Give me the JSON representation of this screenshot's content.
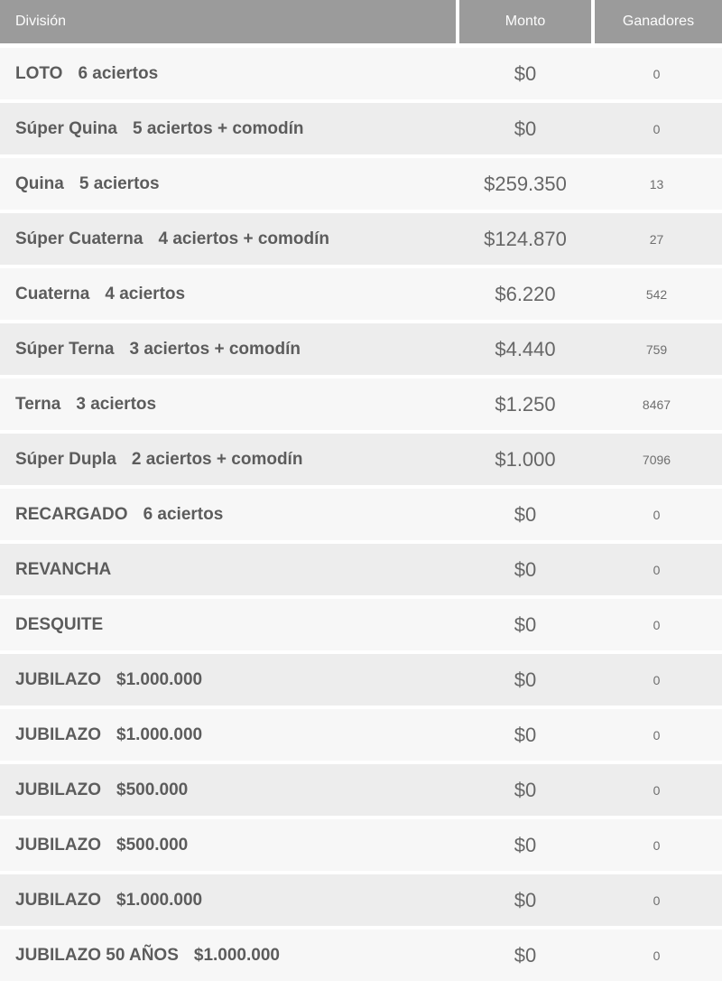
{
  "table": {
    "columns": [
      {
        "label": "División"
      },
      {
        "label": "Monto"
      },
      {
        "label": "Ganadores"
      }
    ],
    "rows": [
      {
        "name": "LOTO",
        "detail": "6 aciertos",
        "monto": "$0",
        "ganadores": "0"
      },
      {
        "name": "Súper Quina",
        "detail": "5 aciertos + comodín",
        "monto": "$0",
        "ganadores": "0"
      },
      {
        "name": "Quina",
        "detail": "5 aciertos",
        "monto": "$259.350",
        "ganadores": "13"
      },
      {
        "name": "Súper Cuaterna",
        "detail": "4 aciertos + comodín",
        "monto": "$124.870",
        "ganadores": "27"
      },
      {
        "name": "Cuaterna",
        "detail": "4 aciertos",
        "monto": "$6.220",
        "ganadores": "542"
      },
      {
        "name": "Súper Terna",
        "detail": "3 aciertos + comodín",
        "monto": "$4.440",
        "ganadores": "759"
      },
      {
        "name": "Terna",
        "detail": "3 aciertos",
        "monto": "$1.250",
        "ganadores": "8467"
      },
      {
        "name": "Súper Dupla",
        "detail": "2 aciertos + comodín",
        "monto": "$1.000",
        "ganadores": "7096"
      },
      {
        "name": "RECARGADO",
        "detail": "6 aciertos",
        "monto": "$0",
        "ganadores": "0"
      },
      {
        "name": "REVANCHA",
        "detail": "",
        "monto": "$0",
        "ganadores": "0"
      },
      {
        "name": "DESQUITE",
        "detail": "",
        "monto": "$0",
        "ganadores": "0"
      },
      {
        "name": "JUBILAZO",
        "detail": "$1.000.000",
        "monto": "$0",
        "ganadores": "0"
      },
      {
        "name": "JUBILAZO",
        "detail": "$1.000.000",
        "monto": "$0",
        "ganadores": "0"
      },
      {
        "name": "JUBILAZO",
        "detail": "$500.000",
        "monto": "$0",
        "ganadores": "0"
      },
      {
        "name": "JUBILAZO",
        "detail": "$500.000",
        "monto": "$0",
        "ganadores": "0"
      },
      {
        "name": "JUBILAZO",
        "detail": "$1.000.000",
        "monto": "$0",
        "ganadores": "0"
      },
      {
        "name": "JUBILAZO 50 AÑOS",
        "detail": "$1.000.000",
        "monto": "$0",
        "ganadores": "0"
      }
    ],
    "colors": {
      "header_background": "#9b9b9b",
      "header_text": "#fdfdfd",
      "row_light": "#f7f7f7",
      "row_dark": "#ededed",
      "label_text": "#5c5c5c",
      "value_text": "#666666",
      "separator": "#ffffff"
    }
  }
}
